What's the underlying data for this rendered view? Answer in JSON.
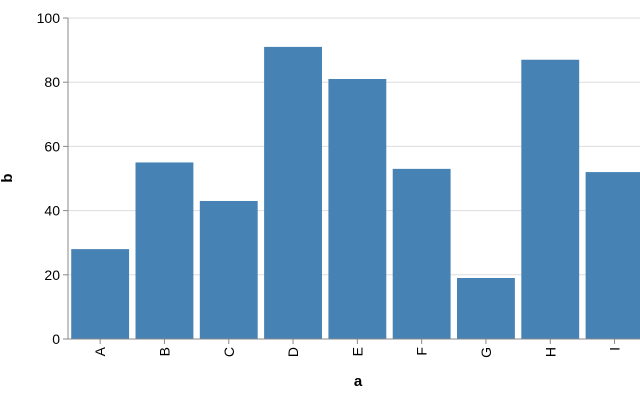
{
  "chart_data": {
    "type": "bar",
    "x_label": "a",
    "y_label": "b",
    "categories": [
      "A",
      "B",
      "C",
      "D",
      "E",
      "F",
      "G",
      "H",
      "I"
    ],
    "values": [
      28,
      55,
      43,
      91,
      81,
      53,
      19,
      87,
      52
    ],
    "color": "#4682b4",
    "ylim": [
      0,
      100
    ],
    "yticks": [
      0,
      20,
      40,
      60,
      80,
      100
    ],
    "grid": true
  }
}
